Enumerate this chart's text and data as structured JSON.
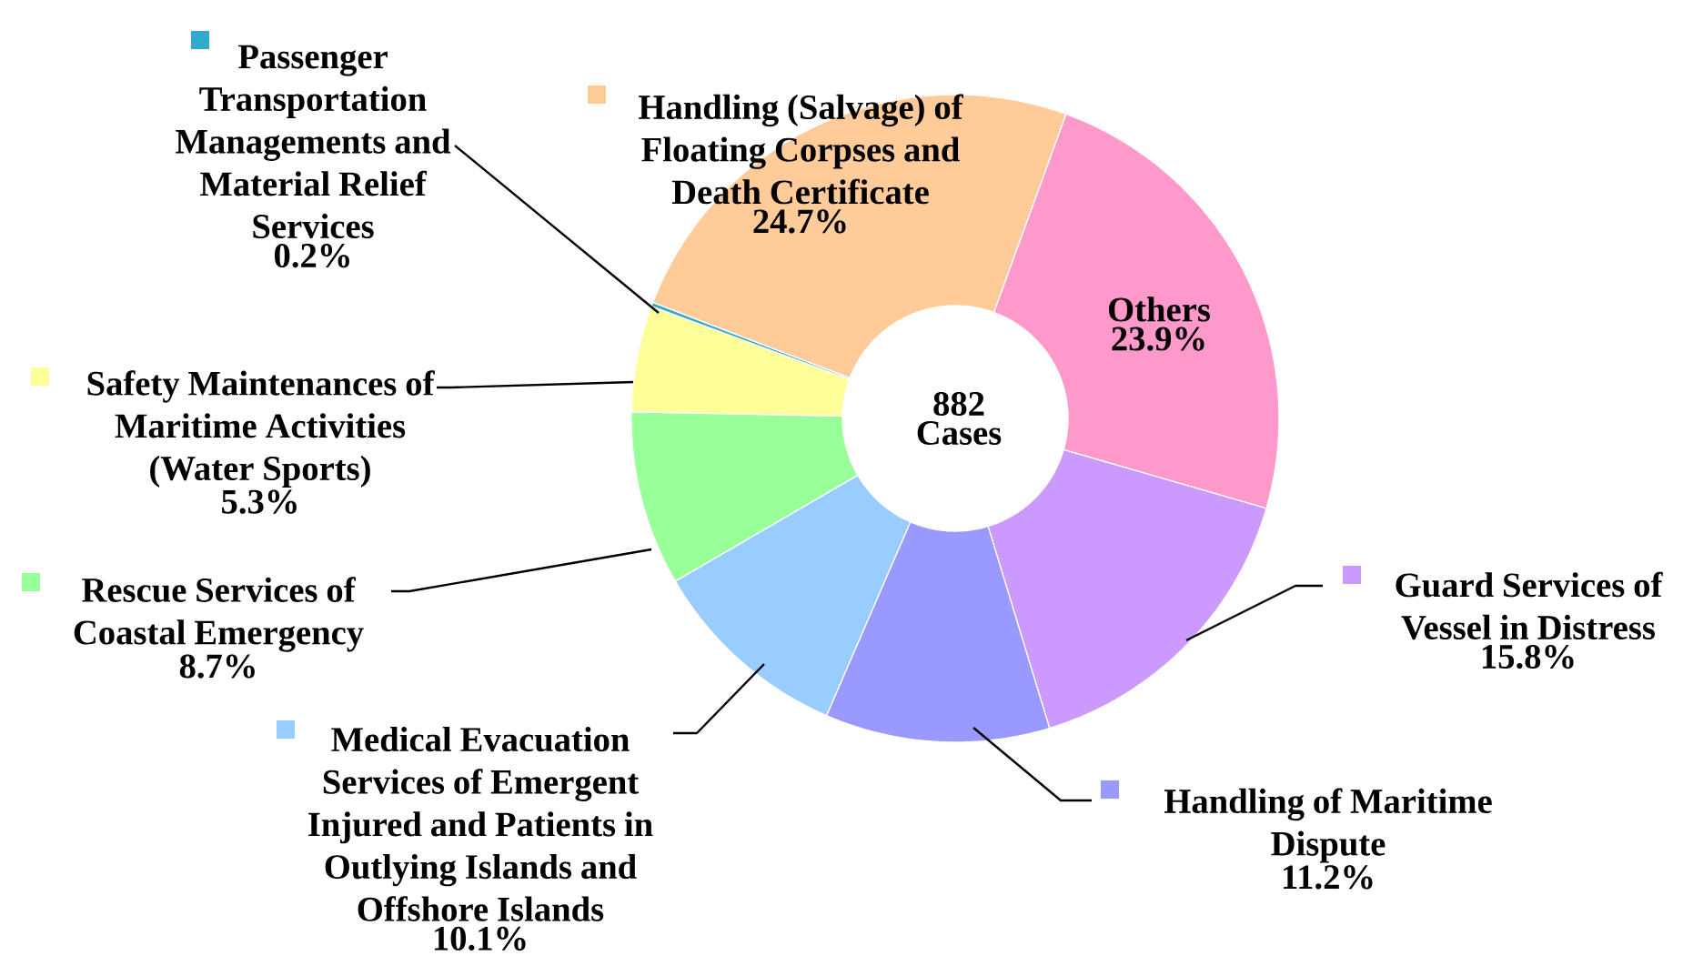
{
  "chart_data": {
    "type": "donut",
    "annotations": [
      "882 Cases"
    ],
    "legend": "left",
    "categories": [
      "Others",
      "Guard Services of Vessel in Distress",
      "Handling of Maritime Dispute",
      "Medical Evacuation Services of Emergent Injured and Patients in Outlying Islands and Offshore Islands",
      "Rescue Services of Coastal Emergency",
      "Safety Maintenances of Maritime Activities (Water Sports)",
      "Passenger Transportation Managements and Material Relief Services",
      "Handling (Salvage) of Floating Corpses and Death Certificate"
    ],
    "values": [
      23.9,
      15.8,
      11.2,
      10.1,
      8.7,
      5.3,
      0.2,
      24.7
    ],
    "colors": [
      "#ff99cc",
      "#cc99ff",
      "#9999ff",
      "#99ccff",
      "#99ff99",
      "#ffff99",
      "#33aacc",
      "#ffcc99"
    ],
    "value_labels": [
      "23.9%",
      "15.8%",
      "11.2%",
      "10.1%",
      "8.7%",
      "5.3%",
      "0.2%",
      "24.7%"
    ]
  }
}
